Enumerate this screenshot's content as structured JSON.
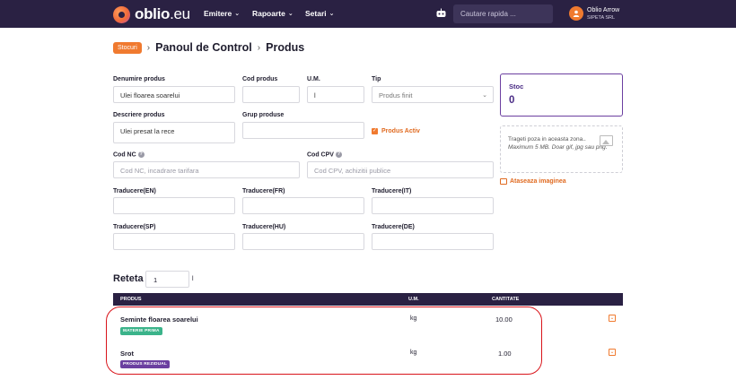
{
  "header": {
    "logo_bold": "oblio",
    "logo_rest": ".eu",
    "nav": [
      "Emitere",
      "Rapoarte",
      "Setari"
    ],
    "search_placeholder": "Cautare rapida ...",
    "user_name": "Oblio Arrow",
    "company": "SIPETA SRL",
    "icons": [
      "robot-icon",
      "user-icon",
      "chevron-down-icon"
    ]
  },
  "breadcrumb": {
    "badge": "Stocuri",
    "level1": "Panoul de Control",
    "level2": "Produs"
  },
  "form": {
    "denumire_label": "Denumire produs",
    "denumire_value": "Ulei floarea soarelui",
    "cod_label": "Cod produs",
    "cod_value": "",
    "um_label": "U.M.",
    "um_value": "l",
    "tip_label": "Tip",
    "tip_value": "Produs finit",
    "descriere_label": "Descriere produs",
    "descriere_value": "Ulei presat la rece",
    "grup_label": "Grup produse",
    "grup_value": "",
    "activ_label": "Produs Activ",
    "codnc_label": "Cod NC",
    "codnc_placeholder": "Cod NC, incadrare tarifara",
    "codcpv_label": "Cod CPV",
    "codcpv_placeholder": "Cod CPV, achizitii publice",
    "trad_en": "Traducere(EN)",
    "trad_fr": "Traducere(FR)",
    "trad_it": "Traducere(IT)",
    "trad_sp": "Traducere(SP)",
    "trad_hu": "Traducere(HU)",
    "trad_de": "Traducere(DE)"
  },
  "side": {
    "stock_label": "Stoc",
    "stock_value": "0",
    "drop_line1": "Trageti poza in aceasta zona..",
    "drop_line2": "Maximum 5 MB. Doar gif, jpg sau png.",
    "attach_label": "Ataseaza imaginea"
  },
  "reteta": {
    "title": "Reteta",
    "qty": "1",
    "unit": "l",
    "col_produs": "PRODUS",
    "col_um": "U.M.",
    "col_cantitate": "CANTITATE",
    "rows": [
      {
        "name": "Seminte floarea soarelui",
        "tag": "MATERIE PRIMA",
        "um": "kg",
        "qty": "10.00"
      },
      {
        "name": "Srot",
        "tag": "PRODUS REZIDUAL",
        "um": "kg",
        "qty": "1.00"
      }
    ]
  },
  "colors": {
    "topbar": "#2a2143",
    "accent": "#f07a2f",
    "purple": "#6b3fa0",
    "green_tag": "#3bb38a",
    "highlight": "#d9141a"
  }
}
